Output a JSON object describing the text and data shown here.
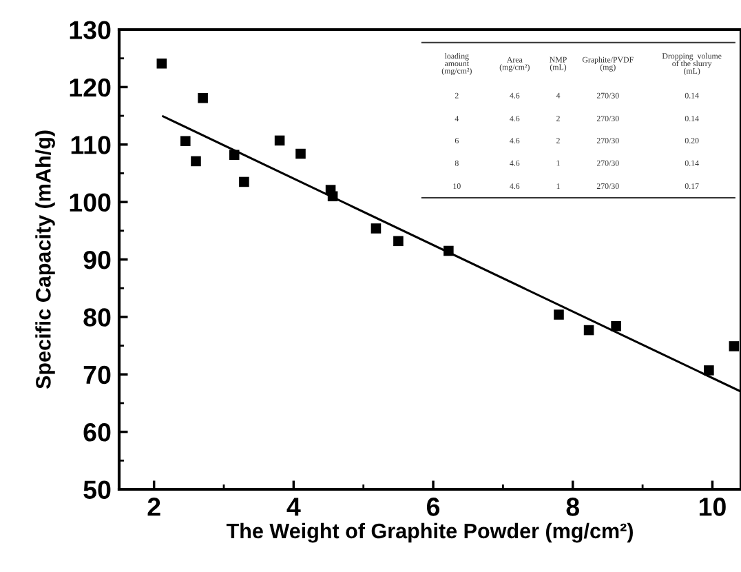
{
  "chart_data": {
    "type": "scatter",
    "xlabel": "The Weight of Graphite Powder (mg/cm²)",
    "ylabel": "Specific Capacity (mAh/g)",
    "xlim": [
      1.5,
      10.41
    ],
    "ylim": [
      50,
      130
    ],
    "xticks": [
      2,
      4,
      6,
      8,
      10
    ],
    "yticks": [
      50,
      60,
      70,
      80,
      90,
      100,
      110,
      120,
      130
    ],
    "grid": false,
    "series": [
      {
        "color": "#000000",
        "marker": "square",
        "x": [
          2.11,
          2.45,
          2.6,
          2.7,
          3.15,
          3.29,
          3.8,
          4.1,
          4.53,
          4.56,
          5.18,
          5.5,
          6.22,
          7.8,
          8.23,
          8.62,
          9.95,
          10.31
        ],
        "values": [
          124.1,
          110.6,
          107.1,
          118.1,
          108.2,
          103.5,
          110.7,
          108.4,
          102.1,
          101.0,
          95.4,
          93.2,
          91.5,
          80.4,
          77.7,
          78.4,
          70.7,
          74.9
        ]
      },
      {
        "type": "line",
        "color": "#000000",
        "marker": "none",
        "line_style": "solid",
        "x": [
          2.13,
          10.41
        ],
        "values": [
          114.9,
          67.0
        ]
      }
    ],
    "annotations": [
      "loading\namount\n(mg/cm²)",
      "Area\n(mg/cm²)",
      "NMP\n(mL)",
      "Graphite/PVDF\n(mg)",
      "Dropping  volume\nof the slurry\n(mL)",
      "2",
      "4.6",
      "4",
      "270/30",
      "0.14",
      "4",
      "4.6",
      "2",
      "270/30",
      "0.14",
      "6",
      "4.6",
      "2",
      "270/30",
      "0.20",
      "8",
      "4.6",
      "1",
      "270/30",
      "0.14",
      "10",
      "4.6",
      "1",
      "270/30",
      "0.17"
    ]
  }
}
